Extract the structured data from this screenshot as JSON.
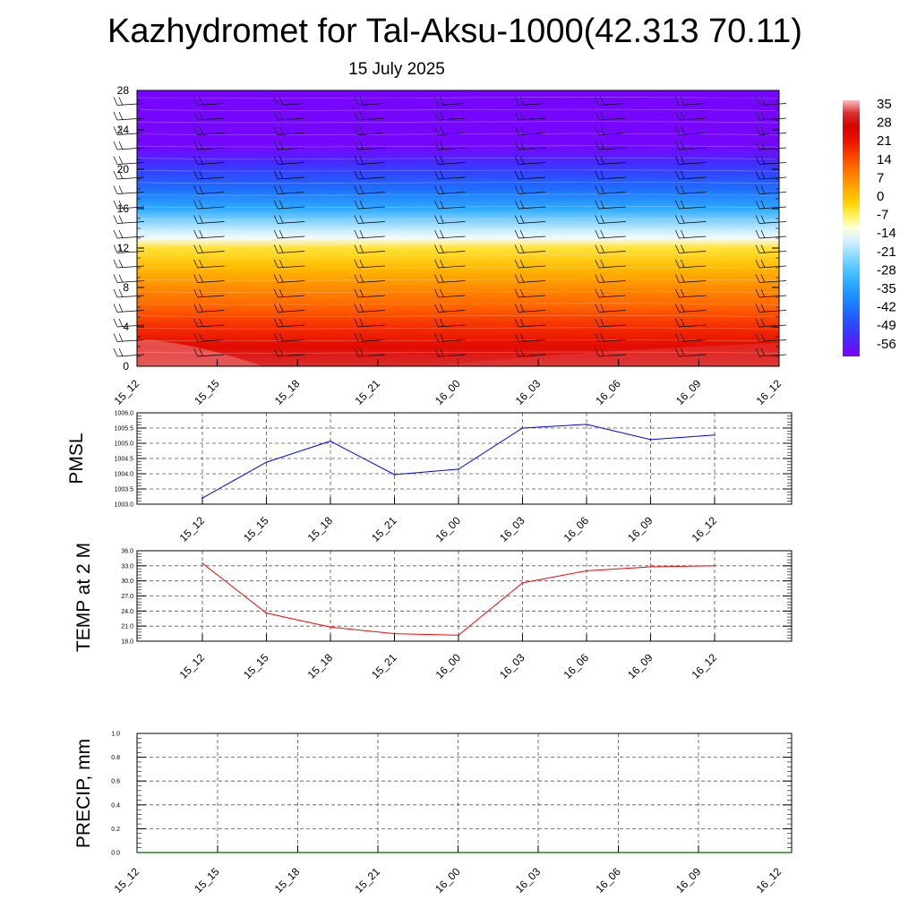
{
  "title": "Kazhydromet for Tal-Aksu-1000(42.313 70.11)",
  "subtitle": "15 July 2025",
  "colors": {
    "pmsl_line": "#0000ff",
    "temp_line": "#ff0000",
    "precip_line": "#006400"
  },
  "chart_data": [
    {
      "type": "heatmap",
      "id": "temperature-profile",
      "x_labels": [
        "15_12",
        "15_15",
        "15_18",
        "15_21",
        "16_00",
        "16_03",
        "16_06",
        "16_09",
        "16_12"
      ],
      "y_ticks": [
        0,
        4,
        8,
        12,
        16,
        20,
        24,
        28
      ],
      "ylim": [
        0,
        28
      ],
      "colorbar": {
        "labels": [
          "35",
          "28",
          "21",
          "14",
          "7",
          "0",
          "-7",
          "-14",
          "-21",
          "-28",
          "-35",
          "-42",
          "-49",
          "-56"
        ],
        "range": [
          -60,
          38
        ]
      },
      "profile": [
        {
          "h": 0,
          "t": 33
        },
        {
          "h": 2,
          "t": 25
        },
        {
          "h": 4,
          "t": 19
        },
        {
          "h": 6,
          "t": 13
        },
        {
          "h": 8,
          "t": 8
        },
        {
          "h": 10,
          "t": 2
        },
        {
          "h": 12,
          "t": -4
        },
        {
          "h": 13,
          "t": -13
        },
        {
          "h": 14,
          "t": -18
        },
        {
          "h": 16,
          "t": -32
        },
        {
          "h": 18,
          "t": -42
        },
        {
          "h": 20,
          "t": -50
        },
        {
          "h": 21,
          "t": -54
        },
        {
          "h": 22,
          "t": -58
        },
        {
          "h": 23,
          "t": -59
        },
        {
          "h": 28,
          "t": -59
        }
      ],
      "wind_barbs": true,
      "grid": false
    },
    {
      "type": "line",
      "id": "pmsl",
      "ylabel": "PMSL",
      "x": [
        "15_12",
        "15_15",
        "15_18",
        "15_21",
        "16_00",
        "16_03",
        "16_06",
        "16_09",
        "16_12"
      ],
      "values": [
        1003.2,
        1004.38,
        1005.07,
        1003.97,
        1004.15,
        1005.5,
        1005.62,
        1005.12,
        1005.27
      ],
      "ylim": [
        1003.0,
        1006.0
      ],
      "y_ticks": [
        "1003.0",
        "1003.5",
        "1004.0",
        "1004.5",
        "1005.0",
        "1005.5",
        "1006.0"
      ],
      "grid": true
    },
    {
      "type": "line",
      "id": "temp-2m",
      "ylabel": "TEMP at 2 M",
      "x": [
        "15_12",
        "15_15",
        "15_18",
        "15_21",
        "16_00",
        "16_03",
        "16_06",
        "16_09",
        "16_12"
      ],
      "values": [
        33.5,
        23.6,
        20.8,
        19.5,
        19.2,
        29.6,
        32.0,
        32.8,
        33.0
      ],
      "ylim": [
        18.0,
        36.0
      ],
      "y_ticks": [
        "18.0",
        "21.0",
        "24.0",
        "27.0",
        "30.0",
        "33.0",
        "36.0"
      ],
      "grid": true
    },
    {
      "type": "line",
      "id": "precip",
      "ylabel": "PRECIP, mm",
      "x": [
        "15_12",
        "15_15",
        "15_18",
        "15_21",
        "16_00",
        "16_03",
        "16_06",
        "16_09",
        "16_12"
      ],
      "values": [
        0,
        0,
        0,
        0,
        0,
        0,
        0,
        0,
        0
      ],
      "ylim": [
        0.0,
        1.0
      ],
      "y_ticks": [
        "0.0",
        "0.2",
        "0.4",
        "0.6",
        "0.8",
        "1.0"
      ],
      "grid": true
    }
  ]
}
